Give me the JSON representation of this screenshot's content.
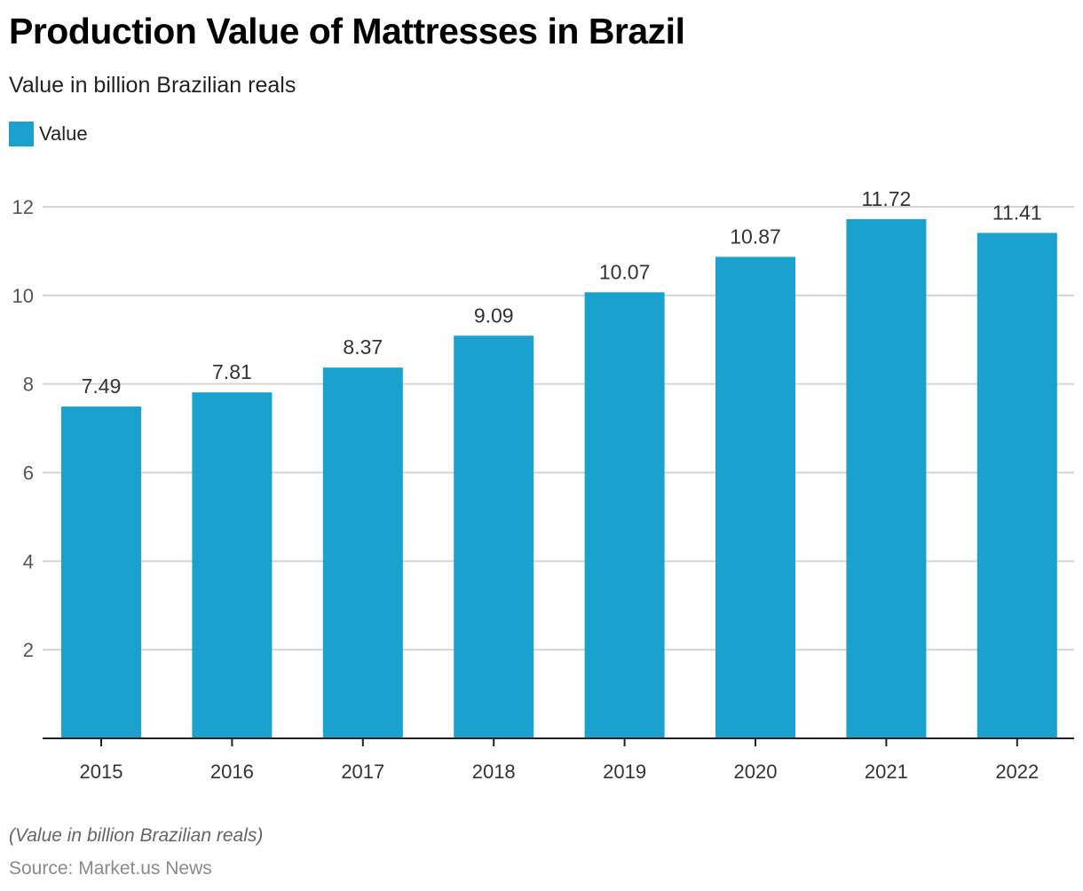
{
  "chart_data": {
    "type": "bar",
    "title": "Production Value of Mattresses in Brazil",
    "subtitle": "Value in billion Brazilian reals",
    "xlabel": "",
    "ylabel": "",
    "categories": [
      "2015",
      "2016",
      "2017",
      "2018",
      "2019",
      "2020",
      "2021",
      "2022"
    ],
    "series": [
      {
        "name": "Value",
        "color": "#1aa1cd",
        "values": [
          7.49,
          7.81,
          8.37,
          9.09,
          10.07,
          10.87,
          11.72,
          11.41
        ]
      }
    ],
    "data_labels": [
      "7.49",
      "7.81",
      "8.37",
      "9.09",
      "10.07",
      "10.87",
      "11.72",
      "11.41"
    ],
    "yticks": [
      2,
      4,
      6,
      8,
      10,
      12
    ],
    "ylim": [
      0,
      12
    ],
    "grid": true,
    "legend": {
      "position": "top-left",
      "entries": [
        "Value"
      ]
    },
    "note": "(Value in billion Brazilian reals)",
    "source": "Source: Market.us News"
  }
}
